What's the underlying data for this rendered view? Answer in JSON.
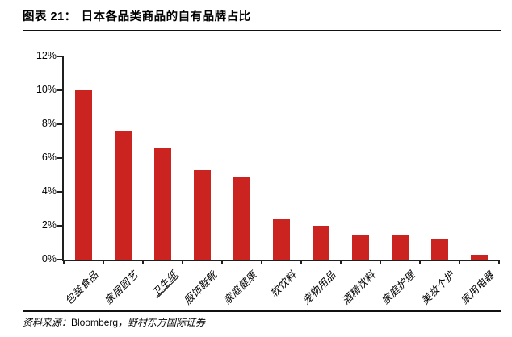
{
  "figure": {
    "label": "图表 21：",
    "title": "日本各品类商品的自有品牌占比"
  },
  "source": {
    "prefix": "资料来源：",
    "name": "Bloomberg",
    "suffix": "，野村东方国际证券"
  },
  "chart_data": {
    "type": "bar",
    "title": "日本各品类商品的自有品牌占比",
    "categories": [
      "包装食品",
      "家居园艺",
      "卫生纸",
      "服饰鞋靴",
      "家庭健康",
      "软饮料",
      "宠物用品",
      "酒精饮料",
      "家庭护理",
      "美妆个护",
      "家用电器"
    ],
    "values": [
      10.0,
      7.6,
      6.6,
      5.3,
      4.9,
      2.4,
      2.0,
      1.5,
      1.5,
      1.2,
      0.3
    ],
    "unit": "%",
    "xlabel": "",
    "ylabel": "",
    "ylim": [
      0,
      12
    ],
    "ytick_step": 2,
    "ytick_labels": [
      "0%",
      "2%",
      "4%",
      "6%",
      "8%",
      "10%",
      "12%"
    ],
    "grid": false,
    "legend": "none",
    "bar_color": "#cb2420",
    "axis_color": "#1f1f1f",
    "underlined_category": "卫生纸"
  }
}
